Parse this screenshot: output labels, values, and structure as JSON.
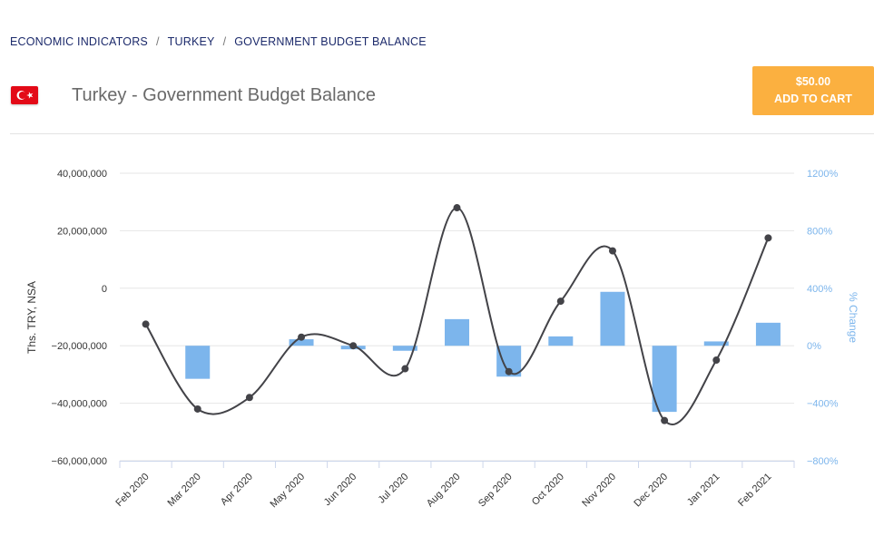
{
  "breadcrumb": {
    "items": [
      "ECONOMIC INDICATORS",
      "TURKEY",
      "GOVERNMENT BUDGET BALANCE"
    ],
    "separator": "/"
  },
  "header": {
    "title": "Turkey - Government Budget Balance",
    "flag_icon": "turkey-flag-icon"
  },
  "cart": {
    "price": "$50.00",
    "label": "ADD TO CART",
    "color": "#fbb040"
  },
  "chart_data": {
    "type": "bar",
    "categories": [
      "Feb 2020",
      "Mar 2020",
      "Apr 2020",
      "May 2020",
      "Jun 2020",
      "Jul 2020",
      "Aug 2020",
      "Sep 2020",
      "Oct 2020",
      "Nov 2020",
      "Dec 2020",
      "Jan 2021",
      "Feb 2021"
    ],
    "series": [
      {
        "type": "line",
        "axis": "left",
        "color": "#434348",
        "values": [
          -12500000,
          -42000000,
          -38000000,
          -17000000,
          -20000000,
          -28000000,
          28000000,
          -29000000,
          -4500000,
          13000000,
          -46000000,
          -25000000,
          17500000
        ]
      },
      {
        "name": "% Change",
        "type": "bar",
        "axis": "right",
        "color": "#7cb5ec",
        "values": [
          null,
          -230,
          null,
          45,
          -25,
          -35,
          185,
          -215,
          65,
          375,
          -460,
          30,
          160
        ]
      }
    ],
    "ylabel": "Ths. TRY, NSA",
    "ylabel_right": "% Change",
    "ylim": [
      -60000000,
      40000000
    ],
    "ylim_right": [
      -800,
      1200
    ],
    "yticks_left": [
      "40,000,000",
      "20,000,000",
      "0",
      "−20,000,000",
      "−40,000,000",
      "−60,000,000"
    ],
    "yticks_right": [
      "1200%",
      "800%",
      "400%",
      "0%",
      "−400%",
      "−800%"
    ],
    "grid": true,
    "legend": "none"
  }
}
